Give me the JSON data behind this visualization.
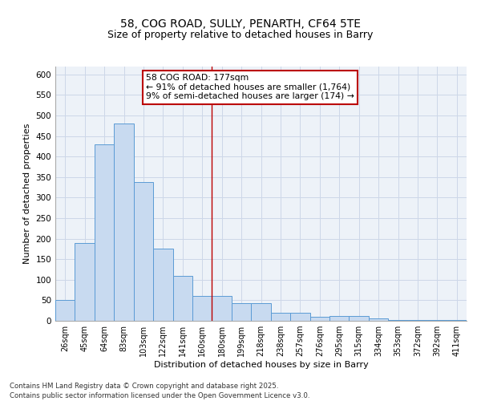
{
  "title_line1": "58, COG ROAD, SULLY, PENARTH, CF64 5TE",
  "title_line2": "Size of property relative to detached houses in Barry",
  "xlabel": "Distribution of detached houses by size in Barry",
  "ylabel": "Number of detached properties",
  "bar_labels": [
    "26sqm",
    "45sqm",
    "64sqm",
    "83sqm",
    "103sqm",
    "122sqm",
    "141sqm",
    "160sqm",
    "180sqm",
    "199sqm",
    "218sqm",
    "238sqm",
    "257sqm",
    "276sqm",
    "295sqm",
    "315sqm",
    "334sqm",
    "353sqm",
    "372sqm",
    "392sqm",
    "411sqm"
  ],
  "bar_values": [
    50,
    190,
    430,
    480,
    338,
    175,
    110,
    60,
    60,
    43,
    43,
    20,
    20,
    9,
    11,
    11,
    5,
    1,
    1,
    2,
    1
  ],
  "bar_color": "#c8daf0",
  "bar_edge_color": "#5b9bd5",
  "annotation_text": "58 COG ROAD: 177sqm\n← 91% of detached houses are smaller (1,764)\n9% of semi-detached houses are larger (174) →",
  "annotation_box_edge_color": "#bb0000",
  "vline_color": "#bb0000",
  "grid_color": "#cdd7e8",
  "background_color": "#edf2f8",
  "ylim": [
    0,
    620
  ],
  "yticks": [
    0,
    50,
    100,
    150,
    200,
    250,
    300,
    350,
    400,
    450,
    500,
    550,
    600
  ],
  "footer_text": "Contains HM Land Registry data © Crown copyright and database right 2025.\nContains public sector information licensed under the Open Government Licence v3.0.",
  "vline_index": 8.0
}
